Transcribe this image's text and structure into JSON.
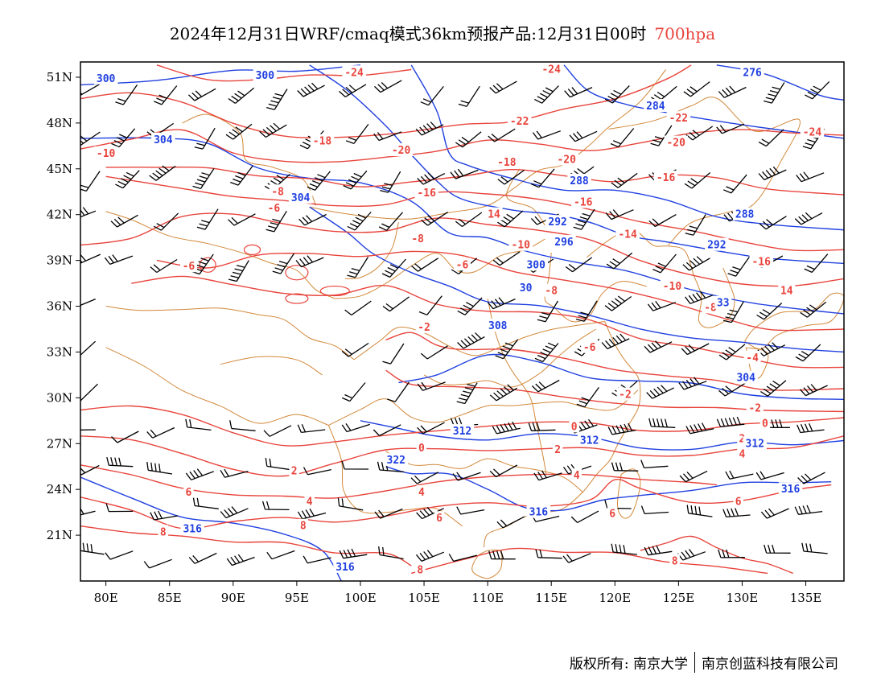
{
  "title": {
    "main": "2024年12月31日WRF/cmaq模式36km预报产品:12月31日00时",
    "level": "700hpa"
  },
  "map": {
    "lon_range": [
      78,
      138
    ],
    "lat_range": [
      18,
      52
    ],
    "x_ticks": [
      {
        "lon": 80,
        "label": "80E"
      },
      {
        "lon": 85,
        "label": "85E"
      },
      {
        "lon": 90,
        "label": "90E"
      },
      {
        "lon": 95,
        "label": "95E"
      },
      {
        "lon": 100,
        "label": "100E"
      },
      {
        "lon": 105,
        "label": "105E"
      },
      {
        "lon": 110,
        "label": "110E"
      },
      {
        "lon": 115,
        "label": "115E"
      },
      {
        "lon": 120,
        "label": "120E"
      },
      {
        "lon": 125,
        "label": "125E"
      },
      {
        "lon": 130,
        "label": "130E"
      },
      {
        "lon": 135,
        "label": "135E"
      }
    ],
    "y_ticks": [
      {
        "lat": 51,
        "label": "51N"
      },
      {
        "lat": 48,
        "label": "48N"
      },
      {
        "lat": 45,
        "label": "45N"
      },
      {
        "lat": 42,
        "label": "42N"
      },
      {
        "lat": 39,
        "label": "39N"
      },
      {
        "lat": 36,
        "label": "36N"
      },
      {
        "lat": 33,
        "label": "33N"
      },
      {
        "lat": 30,
        "label": "30N"
      },
      {
        "lat": 27,
        "label": "27N"
      },
      {
        "lat": 24,
        "label": "24N"
      },
      {
        "lat": 21,
        "label": "21N"
      }
    ],
    "colors": {
      "temperature": "#e8443c",
      "geopotential": "#2040e0",
      "boundary": "#d2883a",
      "wind": "#000000"
    },
    "temperature_labels": [
      {
        "text": "-24",
        "lon": 99.5,
        "lat": 51.3
      },
      {
        "text": "-24",
        "lon": 115.0,
        "lat": 51.5
      },
      {
        "text": "-22",
        "lon": 112.5,
        "lat": 48.1
      },
      {
        "text": "-22",
        "lon": 125.0,
        "lat": 48.3
      },
      {
        "text": "-24",
        "lon": 135.5,
        "lat": 47.4
      },
      {
        "text": "-18",
        "lon": 97.0,
        "lat": 46.8
      },
      {
        "text": "-20",
        "lon": 103.2,
        "lat": 46.2
      },
      {
        "text": "-20",
        "lon": 116.2,
        "lat": 45.6
      },
      {
        "text": "-20",
        "lon": 124.8,
        "lat": 46.7
      },
      {
        "text": "-10",
        "lon": 80.0,
        "lat": 46.0
      },
      {
        "text": "-18",
        "lon": 111.5,
        "lat": 45.4
      },
      {
        "text": "-16",
        "lon": 124.0,
        "lat": 44.4
      },
      {
        "text": "-16",
        "lon": 105.2,
        "lat": 43.4
      },
      {
        "text": "-16",
        "lon": 117.5,
        "lat": 42.8
      },
      {
        "text": "-8",
        "lon": 93.5,
        "lat": 43.5
      },
      {
        "text": "-6",
        "lon": 93.2,
        "lat": 42.4
      },
      {
        "text": "14",
        "lon": 110.5,
        "lat": 42.0
      },
      {
        "text": "-8",
        "lon": 104.5,
        "lat": 40.4
      },
      {
        "text": "-10",
        "lon": 112.6,
        "lat": 40.0
      },
      {
        "text": "-14",
        "lon": 121.0,
        "lat": 40.7
      },
      {
        "text": "-16",
        "lon": 131.5,
        "lat": 38.9
      },
      {
        "text": "-6",
        "lon": 86.5,
        "lat": 38.6
      },
      {
        "text": "-6",
        "lon": 108.0,
        "lat": 38.7
      },
      {
        "text": "-10",
        "lon": 124.5,
        "lat": 37.3
      },
      {
        "text": "14",
        "lon": 133.5,
        "lat": 37.0
      },
      {
        "text": "-8",
        "lon": 115.0,
        "lat": 37.0
      },
      {
        "text": "-8",
        "lon": 127.5,
        "lat": 35.9
      },
      {
        "text": "-2",
        "lon": 105.0,
        "lat": 34.6
      },
      {
        "text": "-6",
        "lon": 118.0,
        "lat": 33.3
      },
      {
        "text": "-4",
        "lon": 130.8,
        "lat": 32.6
      },
      {
        "text": "-2",
        "lon": 120.8,
        "lat": 30.2
      },
      {
        "text": "-2",
        "lon": 131.0,
        "lat": 29.3
      },
      {
        "text": "0",
        "lon": 131.8,
        "lat": 28.3
      },
      {
        "text": "0",
        "lon": 116.8,
        "lat": 28.1
      },
      {
        "text": "0",
        "lon": 104.8,
        "lat": 26.7
      },
      {
        "text": "2",
        "lon": 94.8,
        "lat": 25.2
      },
      {
        "text": "2",
        "lon": 115.5,
        "lat": 26.6
      },
      {
        "text": "2",
        "lon": 130.0,
        "lat": 27.3
      },
      {
        "text": "4",
        "lon": 130.0,
        "lat": 26.3
      },
      {
        "text": "4",
        "lon": 117.0,
        "lat": 24.9
      },
      {
        "text": "6",
        "lon": 86.5,
        "lat": 23.8
      },
      {
        "text": "4",
        "lon": 96.0,
        "lat": 23.2
      },
      {
        "text": "4",
        "lon": 104.8,
        "lat": 23.8
      },
      {
        "text": "6",
        "lon": 129.7,
        "lat": 23.2
      },
      {
        "text": "6",
        "lon": 106.2,
        "lat": 22.1
      },
      {
        "text": "6",
        "lon": 119.8,
        "lat": 22.4
      },
      {
        "text": "8",
        "lon": 84.5,
        "lat": 21.2
      },
      {
        "text": "8",
        "lon": 95.5,
        "lat": 21.6
      },
      {
        "text": "8",
        "lon": 104.7,
        "lat": 18.7
      },
      {
        "text": "8",
        "lon": 124.7,
        "lat": 19.3
      }
    ],
    "geopotential_labels": [
      {
        "text": "300",
        "lon": 80.0,
        "lat": 50.9
      },
      {
        "text": "300",
        "lon": 92.5,
        "lat": 51.1
      },
      {
        "text": "276",
        "lon": 130.8,
        "lat": 51.3
      },
      {
        "text": "284",
        "lon": 123.2,
        "lat": 49.1
      },
      {
        "text": "304",
        "lon": 84.5,
        "lat": 46.9
      },
      {
        "text": "288",
        "lon": 117.2,
        "lat": 44.2
      },
      {
        "text": "304",
        "lon": 95.3,
        "lat": 43.1
      },
      {
        "text": "288",
        "lon": 130.2,
        "lat": 42.0
      },
      {
        "text": "292",
        "lon": 115.5,
        "lat": 41.5
      },
      {
        "text": "296",
        "lon": 116.0,
        "lat": 40.2
      },
      {
        "text": "292",
        "lon": 128.0,
        "lat": 40.0
      },
      {
        "text": "300",
        "lon": 113.8,
        "lat": 38.7
      },
      {
        "text": "30",
        "lon": 113.0,
        "lat": 37.2
      },
      {
        "text": "33",
        "lon": 128.5,
        "lat": 36.2
      },
      {
        "text": "308",
        "lon": 110.8,
        "lat": 34.7
      },
      {
        "text": "304",
        "lon": 130.3,
        "lat": 31.3
      },
      {
        "text": "312",
        "lon": 108.0,
        "lat": 27.8
      },
      {
        "text": "312",
        "lon": 118.0,
        "lat": 27.2
      },
      {
        "text": "312",
        "lon": 131.0,
        "lat": 27.0
      },
      {
        "text": "322",
        "lon": 102.8,
        "lat": 25.9
      },
      {
        "text": "316",
        "lon": 133.8,
        "lat": 24.0
      },
      {
        "text": "316",
        "lon": 114.0,
        "lat": 22.5
      },
      {
        "text": "316",
        "lon": 86.8,
        "lat": 21.4
      },
      {
        "text": "316",
        "lon": 98.8,
        "lat": 18.9
      }
    ]
  },
  "credit": {
    "left": "版权所有: 南京大学",
    "right": "南京创蓝科技有限公司"
  }
}
